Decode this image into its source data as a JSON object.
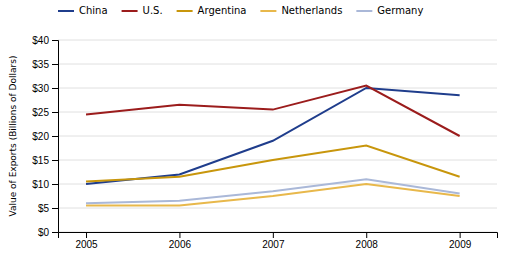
{
  "chart_data": {
    "type": "line",
    "x": [
      2005,
      2006,
      2007,
      2008,
      2009
    ],
    "series": [
      {
        "name": "China",
        "color": "#1f3d8c",
        "values": [
          10.0,
          12.0,
          19.0,
          30.0,
          28.5
        ]
      },
      {
        "name": "U.S.",
        "color": "#9b1c1c",
        "values": [
          24.5,
          26.5,
          25.5,
          30.5,
          20.0
        ]
      },
      {
        "name": "Argentina",
        "color": "#c8960c",
        "values": [
          10.5,
          11.5,
          15.0,
          18.0,
          11.5
        ]
      },
      {
        "name": "Netherlands",
        "color": "#e8b84b",
        "values": [
          5.5,
          5.5,
          7.5,
          10.0,
          7.5
        ]
      },
      {
        "name": "Germany",
        "color": "#aab8d8",
        "values": [
          6.0,
          6.5,
          8.5,
          11.0,
          8.0
        ]
      }
    ],
    "xlim": [
      2004.7,
      2009.4
    ],
    "xticks": [
      2005,
      2006,
      2007,
      2008,
      2009
    ],
    "ylim": [
      0,
      40
    ],
    "yticks": [
      {
        "value": 0,
        "label": "$0"
      },
      {
        "value": 5,
        "label": "$5"
      },
      {
        "value": 10,
        "label": "$10"
      },
      {
        "value": 15,
        "label": "$15"
      },
      {
        "value": 20,
        "label": "$20"
      },
      {
        "value": 25,
        "label": "$25"
      },
      {
        "value": 30,
        "label": "$30"
      },
      {
        "value": 35,
        "label": "$35"
      },
      {
        "value": 40,
        "label": "$40"
      }
    ],
    "ylabel": "Value of Exports (Billions of Dollars)",
    "grid": true,
    "legend": "top-left"
  }
}
